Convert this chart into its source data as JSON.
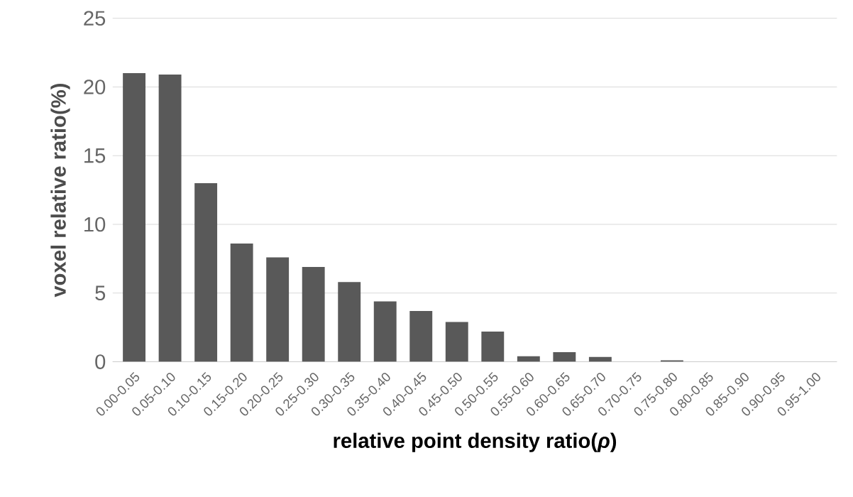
{
  "chart_data": {
    "type": "bar",
    "xlabel": "relative point density ratio(*ρ*)",
    "ylabel": "voxel relative ratio(%)",
    "categories": [
      "0.00-0.05",
      "0.05-0.10",
      "0.10-0.15",
      "0.15-0.20",
      "0.20-0.25",
      "0.25-0.30",
      "0.30-0.35",
      "0.35-0.40",
      "0.40-0.45",
      "0.45-0.50",
      "0.50-0.55",
      "0.55-0.60",
      "0.60-0.65",
      "0.65-0.70",
      "0.70-0.75",
      "0.75-0.80",
      "0.80-0.85",
      "0.85-0.90",
      "0.90-0.95",
      "0.95-1.00"
    ],
    "values": [
      21.0,
      20.9,
      13.0,
      8.6,
      7.6,
      6.9,
      5.8,
      4.4,
      3.7,
      2.9,
      2.2,
      0.4,
      0.7,
      0.35,
      0,
      0.1,
      0,
      0,
      0,
      0
    ],
    "color": "#595959",
    "ylim": [
      0,
      25
    ],
    "yticks": [
      0,
      5,
      10,
      15,
      20,
      25
    ],
    "grid": "y"
  }
}
